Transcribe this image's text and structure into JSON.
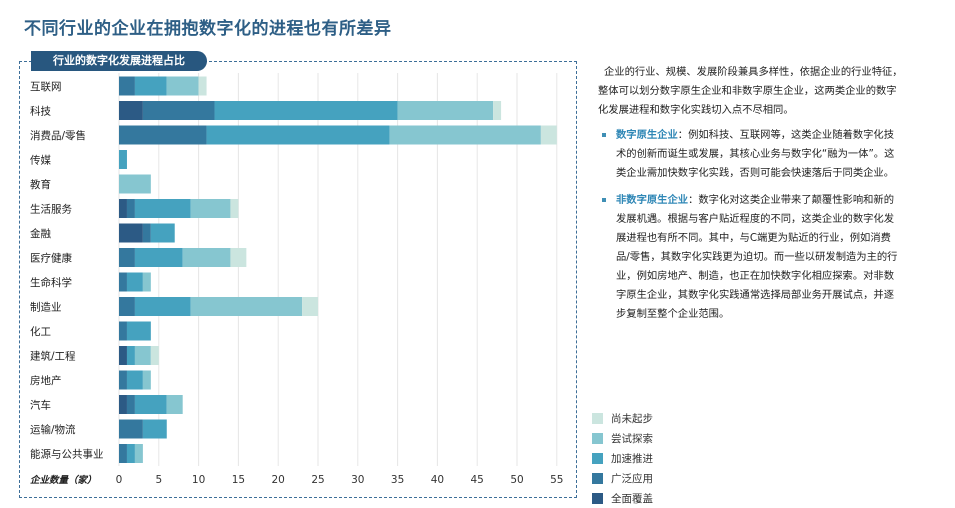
{
  "page": {
    "title": "不同行业的企业在拥抱数字化的进程也有所差异",
    "chart_tab": "行业的数字化发展进程占比"
  },
  "colors": {
    "full": "#2c5a85",
    "wide": "#34789e",
    "accel": "#45a2bf",
    "trial": "#86c6d0",
    "none": "#cbe5df"
  },
  "chart_data": {
    "type": "bar",
    "orientation": "horizontal",
    "stacked": true,
    "categories": [
      "互联网",
      "科技",
      "消费品/零售",
      "传媒",
      "教育",
      "生活服务",
      "金融",
      "医疗健康",
      "生命科学",
      "制造业",
      "化工",
      "建筑/工程",
      "房地产",
      "汽车",
      "运输/物流",
      "能源与公共事业"
    ],
    "series": [
      {
        "name": "全面覆盖",
        "values": [
          0,
          3,
          0,
          0,
          0,
          1,
          3,
          0,
          0,
          0,
          0,
          1,
          0,
          1,
          0,
          0
        ]
      },
      {
        "name": "广泛应用",
        "values": [
          2,
          9,
          11,
          0,
          0,
          1,
          1,
          2,
          1,
          2,
          1,
          0,
          1,
          1,
          3,
          1
        ]
      },
      {
        "name": "加速推进",
        "values": [
          4,
          23,
          23,
          1,
          0,
          7,
          3,
          6,
          2,
          7,
          3,
          1,
          2,
          4,
          3,
          1
        ]
      },
      {
        "name": "尝试探索",
        "values": [
          4,
          12,
          19,
          0,
          4,
          5,
          0,
          6,
          1,
          14,
          0,
          2,
          1,
          2,
          0,
          1
        ]
      },
      {
        "name": "尚未起步",
        "values": [
          1,
          1,
          2,
          0,
          0,
          1,
          0,
          2,
          0,
          2,
          0,
          1,
          0,
          0,
          0,
          0
        ]
      }
    ],
    "x_ticks": [
      0,
      5,
      10,
      15,
      20,
      25,
      30,
      35,
      40,
      45,
      50,
      55
    ],
    "xlim": [
      0,
      56
    ],
    "xlabel": "企业数量（家）",
    "grid": true,
    "legend_position": "bottom-right"
  },
  "legend": [
    {
      "label": "尚未起步",
      "color": "#cbe5df"
    },
    {
      "label": "尝试探索",
      "color": "#86c6d0"
    },
    {
      "label": "加速推进",
      "color": "#45a2bf"
    },
    {
      "label": "广泛应用",
      "color": "#34789e"
    },
    {
      "label": "全面覆盖",
      "color": "#2c5a85"
    }
  ],
  "side": {
    "intro": "企业的行业、规模、发展阶段兼具多样性，依据企业的行业特征，整体可以划分数字原生企业和非数字原生企业，这两类企业的数字化发展进程和数字化实践切入点不尽相同。",
    "b1_kw": "数字原生企业",
    "b1_text": "：例如科技、互联网等，这类企业随着数字化技术的创新而诞生或发展，其核心业务与数字化“融为一体”。这类企业需加快数字化实践，否则可能会快速落后于同类企业。",
    "b2_kw": "非数字原生企业",
    "b2_text": "：数字化对这类企业带来了颠覆性影响和新的发展机遇。根据与客户贴近程度的不同，这类企业的数字化发展进程也有所不同。其中，与C端更为贴近的行业，例如消费品/零售，其数字化实践更为迫切。而一些以研发制造为主的行业，例如房地产、制造，也正在加快数字化相应探索。对非数字原生企业，其数字化实践通常选择局部业务开展试点，并逐步复制至整个企业范围。"
  }
}
